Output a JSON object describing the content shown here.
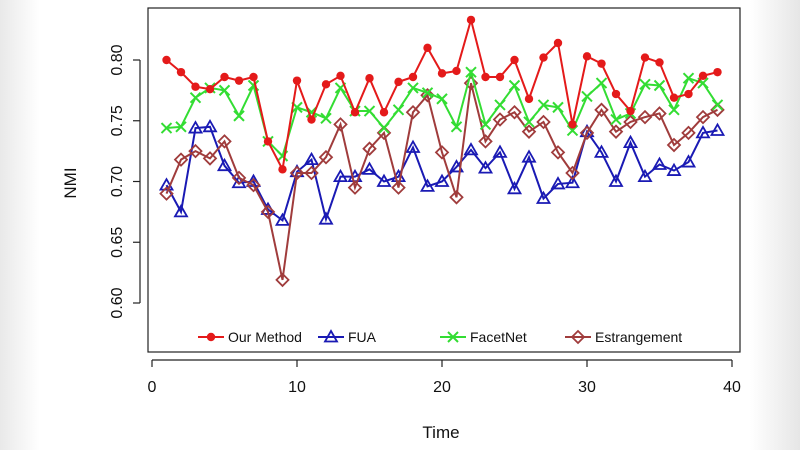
{
  "chart_data": {
    "type": "line",
    "title": "",
    "xlabel": "Time",
    "ylabel": "NMI",
    "xlim": [
      0,
      40
    ],
    "ylim": [
      0.58,
      0.84
    ],
    "xticks": [
      "0",
      "10",
      "20",
      "30",
      "40"
    ],
    "yticks": [
      "0.60",
      "0.65",
      "0.70",
      "0.75",
      "0.80"
    ],
    "grid": false,
    "legend_position": "bottom-inside",
    "x": [
      1,
      2,
      3,
      4,
      5,
      6,
      7,
      8,
      9,
      10,
      11,
      12,
      13,
      14,
      15,
      16,
      17,
      18,
      19,
      20,
      21,
      22,
      23,
      24,
      25,
      26,
      27,
      28,
      29,
      30,
      31,
      32,
      33,
      34,
      35,
      36,
      37,
      38,
      39
    ],
    "series": [
      {
        "name": "Our Method",
        "color": "#e41a1a",
        "marker": "filled-circle",
        "values": [
          0.8,
          0.79,
          0.778,
          0.776,
          0.786,
          0.783,
          0.786,
          0.733,
          0.71,
          0.783,
          0.751,
          0.78,
          0.787,
          0.757,
          0.785,
          0.757,
          0.782,
          0.786,
          0.81,
          0.789,
          0.791,
          0.833,
          0.786,
          0.786,
          0.8,
          0.768,
          0.802,
          0.814,
          0.747,
          0.803,
          0.797,
          0.772,
          0.758,
          0.802,
          0.798,
          0.769,
          0.772,
          0.787,
          0.79
        ]
      },
      {
        "name": "FUA",
        "color": "#1a1ab4",
        "marker": "open-triangle",
        "values": [
          0.697,
          0.675,
          0.744,
          0.745,
          0.713,
          0.699,
          0.7,
          0.677,
          0.668,
          0.708,
          0.718,
          0.669,
          0.704,
          0.704,
          0.71,
          0.7,
          0.704,
          0.728,
          0.696,
          0.7,
          0.712,
          0.726,
          0.711,
          0.724,
          0.694,
          0.72,
          0.686,
          0.698,
          0.699,
          0.741,
          0.724,
          0.7,
          0.732,
          0.704,
          0.714,
          0.709,
          0.716,
          0.74,
          0.742
        ]
      },
      {
        "name": "FacetNet",
        "color": "#33dd33",
        "marker": "x",
        "values": [
          0.744,
          0.745,
          0.769,
          0.777,
          0.775,
          0.754,
          0.779,
          0.733,
          0.721,
          0.761,
          0.757,
          0.752,
          0.777,
          0.758,
          0.758,
          0.744,
          0.759,
          0.777,
          0.773,
          0.768,
          0.745,
          0.79,
          0.747,
          0.763,
          0.779,
          0.749,
          0.763,
          0.761,
          0.742,
          0.77,
          0.781,
          0.751,
          0.756,
          0.78,
          0.779,
          0.759,
          0.785,
          0.781,
          0.763
        ]
      },
      {
        "name": "Estrangement",
        "color": "#a03c3c",
        "marker": "open-diamond",
        "values": [
          0.69,
          0.718,
          0.725,
          0.719,
          0.733,
          0.703,
          0.697,
          0.675,
          0.619,
          0.707,
          0.707,
          0.72,
          0.747,
          0.695,
          0.727,
          0.74,
          0.695,
          0.757,
          0.771,
          0.724,
          0.687,
          0.781,
          0.733,
          0.751,
          0.757,
          0.741,
          0.749,
          0.724,
          0.707,
          0.74,
          0.759,
          0.741,
          0.749,
          0.753,
          0.756,
          0.73,
          0.74,
          0.753,
          0.759
        ]
      }
    ]
  }
}
